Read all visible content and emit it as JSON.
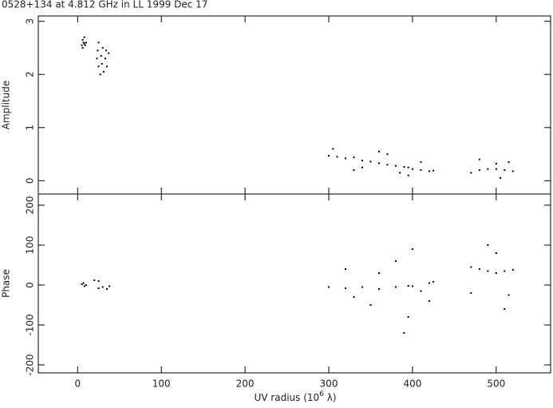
{
  "title": "0528+134 at 4.812 GHz in LL  1999 Dec 17",
  "x_label": "UV radius  (10",
  "x_label_sup": "6",
  "x_label_end": " λ)",
  "chart_data": [
    {
      "type": "scatter",
      "y_label": "Amplitude",
      "color": "#000000",
      "xlim": [
        -47,
        565
      ],
      "xticks": [
        0,
        100,
        200,
        300,
        400,
        500
      ],
      "ylim": [
        -0.25,
        3.1
      ],
      "yticks": [
        0,
        1,
        2,
        3
      ],
      "x": [
        5,
        6,
        7,
        8,
        9,
        10,
        6,
        8,
        25,
        24,
        23,
        25,
        27,
        30,
        28,
        29,
        31,
        34,
        33,
        35,
        37,
        300,
        310,
        320,
        330,
        340,
        350,
        360,
        370,
        380,
        390,
        395,
        400,
        410,
        420,
        425,
        470,
        480,
        490,
        500,
        510,
        520,
        305,
        340,
        370,
        395,
        410,
        480,
        505,
        515,
        330,
        360,
        385,
        500
      ],
      "values": [
        2.55,
        2.65,
        2.6,
        2.7,
        2.55,
        2.6,
        2.5,
        2.58,
        2.6,
        2.45,
        2.3,
        2.15,
        2.0,
        2.5,
        2.35,
        2.2,
        2.05,
        2.45,
        2.3,
        2.15,
        2.4,
        0.47,
        0.45,
        0.42,
        0.44,
        0.38,
        0.36,
        0.33,
        0.3,
        0.28,
        0.26,
        0.25,
        0.22,
        0.2,
        0.18,
        0.19,
        0.15,
        0.2,
        0.22,
        0.22,
        0.2,
        0.18,
        0.6,
        0.25,
        0.5,
        0.1,
        0.35,
        0.4,
        0.05,
        0.35,
        0.2,
        0.55,
        0.15,
        0.32
      ]
    },
    {
      "type": "scatter",
      "y_label": "Phase",
      "color": "#000000",
      "xlim": [
        -47,
        565
      ],
      "xticks": [
        0,
        100,
        200,
        300,
        400,
        500
      ],
      "ylim": [
        -220,
        228
      ],
      "yticks": [
        -200,
        -100,
        0,
        100,
        200
      ],
      "x": [
        5,
        7,
        8,
        10,
        20,
        25,
        25,
        30,
        35,
        38,
        300,
        320,
        340,
        360,
        380,
        395,
        400,
        410,
        420,
        425,
        470,
        480,
        490,
        500,
        510,
        520,
        320,
        350,
        380,
        395,
        400,
        420,
        470,
        490,
        510,
        330,
        360,
        390,
        500,
        515
      ],
      "values": [
        2,
        5,
        -3,
        0,
        12,
        10,
        -8,
        -5,
        -10,
        -3,
        -5,
        -8,
        -5,
        -10,
        -5,
        -2,
        -3,
        -15,
        5,
        8,
        45,
        40,
        35,
        30,
        35,
        38,
        40,
        -50,
        60,
        -80,
        90,
        -40,
        -20,
        100,
        -60,
        -30,
        30,
        -120,
        80,
        -25
      ]
    }
  ]
}
